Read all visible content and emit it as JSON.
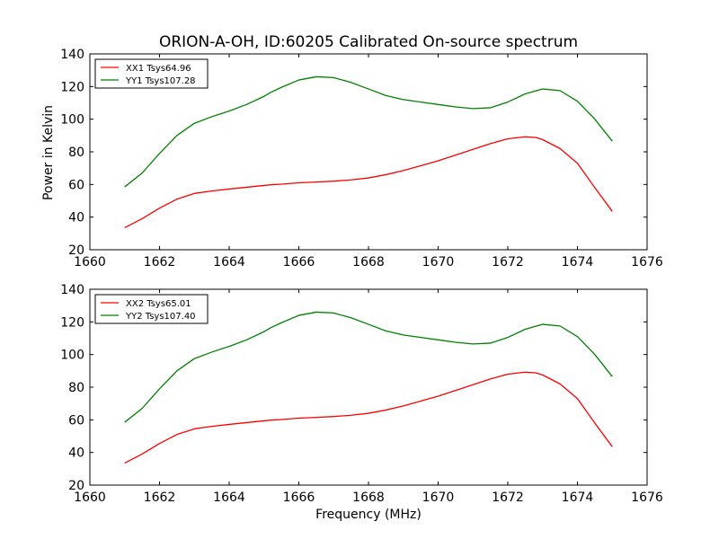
{
  "figure": {
    "title": "ORION-A-OH, ID:60205 Calibrated On-source spectrum",
    "xlabel": "Frequency (MHz)",
    "ylabel": "Power in Kelvin"
  },
  "chart_data": [
    {
      "type": "line",
      "title": "ORION-A-OH, ID:60205 Calibrated On-source spectrum",
      "ylabel": "Power in Kelvin",
      "xlabel": "",
      "xlim": [
        1660,
        1676
      ],
      "ylim": [
        20,
        140
      ],
      "xticks": [
        1660,
        1662,
        1664,
        1666,
        1668,
        1670,
        1672,
        1674,
        1676
      ],
      "yticks": [
        20,
        40,
        60,
        80,
        100,
        120,
        140
      ],
      "grid": false,
      "legend": "top-left",
      "series": [
        {
          "name": "XX1 Tsys64.96",
          "color": "#ff0000",
          "x": [
            1661.0,
            1661.5,
            1662.0,
            1662.5,
            1663.0,
            1663.5,
            1664.0,
            1664.5,
            1665.0,
            1665.2,
            1665.5,
            1666.0,
            1666.5,
            1667.0,
            1667.5,
            1668.0,
            1668.5,
            1669.0,
            1669.5,
            1670.0,
            1670.5,
            1671.0,
            1671.5,
            1672.0,
            1672.5,
            1672.8,
            1673.0,
            1673.5,
            1674.0,
            1674.5,
            1675.0
          ],
          "y": [
            33.5,
            39.0,
            45.5,
            51.0,
            54.5,
            56.0,
            57.2,
            58.3,
            59.4,
            59.8,
            60.2,
            61.0,
            61.5,
            62.0,
            62.8,
            64.0,
            66.0,
            68.5,
            71.5,
            74.5,
            78.0,
            81.5,
            85.0,
            88.0,
            89.2,
            88.8,
            87.5,
            82.0,
            73.0,
            58.0,
            43.5
          ]
        },
        {
          "name": "YY1 Tsys107.28",
          "color": "#008000",
          "x": [
            1661.0,
            1661.5,
            1662.0,
            1662.5,
            1663.0,
            1663.5,
            1664.0,
            1664.5,
            1665.0,
            1665.2,
            1665.5,
            1666.0,
            1666.5,
            1667.0,
            1667.5,
            1668.0,
            1668.5,
            1669.0,
            1669.5,
            1670.0,
            1670.5,
            1671.0,
            1671.5,
            1672.0,
            1672.5,
            1673.0,
            1673.5,
            1674.0,
            1674.5,
            1675.0
          ],
          "y": [
            58.5,
            67.0,
            79.0,
            90.0,
            97.5,
            101.5,
            105.0,
            109.0,
            114.0,
            116.5,
            119.5,
            124.0,
            126.0,
            125.5,
            122.5,
            118.5,
            114.5,
            112.0,
            110.5,
            109.0,
            107.5,
            106.5,
            107.0,
            110.5,
            115.5,
            118.5,
            117.5,
            111.0,
            100.0,
            86.5
          ]
        }
      ]
    },
    {
      "type": "line",
      "title": "",
      "ylabel": "Power in Kelvin",
      "xlabel": "Frequency (MHz)",
      "xlim": [
        1660,
        1676
      ],
      "ylim": [
        20,
        140
      ],
      "xticks": [
        1660,
        1662,
        1664,
        1666,
        1668,
        1670,
        1672,
        1674,
        1676
      ],
      "yticks": [
        20,
        40,
        60,
        80,
        100,
        120,
        140
      ],
      "grid": false,
      "legend": "top-left",
      "series": [
        {
          "name": "XX2 Tsys65.01",
          "color": "#ff0000",
          "x": [
            1661.0,
            1661.5,
            1662.0,
            1662.5,
            1663.0,
            1663.5,
            1664.0,
            1664.5,
            1665.0,
            1665.2,
            1665.5,
            1666.0,
            1666.5,
            1667.0,
            1667.5,
            1668.0,
            1668.5,
            1669.0,
            1669.5,
            1670.0,
            1670.5,
            1671.0,
            1671.5,
            1672.0,
            1672.5,
            1672.8,
            1673.0,
            1673.5,
            1674.0,
            1674.5,
            1675.0
          ],
          "y": [
            33.5,
            39.0,
            45.5,
            51.0,
            54.5,
            56.0,
            57.2,
            58.3,
            59.4,
            59.8,
            60.2,
            61.0,
            61.5,
            62.0,
            62.8,
            64.0,
            66.0,
            68.5,
            71.5,
            74.5,
            78.0,
            81.5,
            85.0,
            88.0,
            89.2,
            88.8,
            87.5,
            82.0,
            73.0,
            58.0,
            43.5
          ]
        },
        {
          "name": "YY2 Tsys107.40",
          "color": "#008000",
          "x": [
            1661.0,
            1661.5,
            1662.0,
            1662.5,
            1663.0,
            1663.5,
            1664.0,
            1664.5,
            1665.0,
            1665.2,
            1665.5,
            1666.0,
            1666.5,
            1667.0,
            1667.5,
            1668.0,
            1668.5,
            1669.0,
            1669.5,
            1670.0,
            1670.5,
            1671.0,
            1671.5,
            1672.0,
            1672.5,
            1673.0,
            1673.5,
            1674.0,
            1674.5,
            1675.0
          ],
          "y": [
            58.5,
            67.0,
            79.0,
            90.0,
            97.5,
            101.5,
            105.0,
            109.0,
            114.0,
            116.5,
            119.5,
            124.0,
            126.0,
            125.5,
            122.5,
            118.5,
            114.5,
            112.0,
            110.5,
            109.0,
            107.5,
            106.5,
            107.0,
            110.5,
            115.5,
            118.5,
            117.5,
            111.0,
            100.0,
            86.5
          ]
        }
      ]
    }
  ]
}
